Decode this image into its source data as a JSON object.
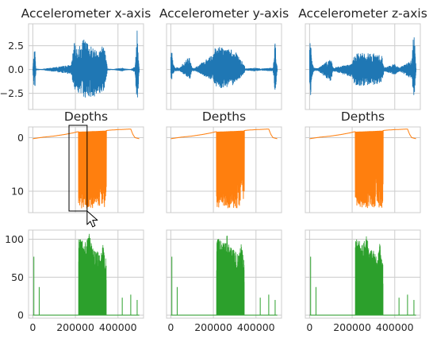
{
  "colors": {
    "blue": "#1f77b4",
    "orange": "#ff7f0e",
    "green": "#2ca02c",
    "grid": "#cccccc"
  },
  "chart_data": [
    {
      "type": "line",
      "row": 0,
      "col": 0,
      "title": "Accelerometer x-axis",
      "series_color": "#1f77b4",
      "xlim": [
        -20000,
        520000
      ],
      "ylim": [
        -4.2,
        4.8
      ],
      "yticks": [
        -2.5,
        0.0,
        2.5
      ],
      "ytick_labels": [
        "−2.5",
        "0.0",
        "2.5"
      ],
      "xticks": [
        0,
        200000,
        400000
      ],
      "show_xtick_labels": false,
      "show_ytick_labels": true,
      "grid": true,
      "envelope_x": [
        0,
        5000,
        10000,
        15000,
        40000,
        180000,
        195000,
        210000,
        240000,
        300000,
        340000,
        350000,
        380000,
        420000,
        430000,
        460000,
        480000,
        490000,
        500000
      ],
      "envelope_hi": [
        0.1,
        1.8,
        2.0,
        0.1,
        0.05,
        0.5,
        2.8,
        2.2,
        3.2,
        2.0,
        2.8,
        0.1,
        0.05,
        0.2,
        0.1,
        0.05,
        0.3,
        4.2,
        0.1
      ],
      "envelope_lo": [
        -0.1,
        -1.6,
        -2.2,
        -0.1,
        -0.05,
        -0.5,
        -2.0,
        -2.4,
        -3.0,
        -2.8,
        -2.2,
        -0.1,
        -0.05,
        -0.2,
        -0.1,
        -0.05,
        -0.3,
        -3.9,
        -0.1
      ]
    },
    {
      "type": "line",
      "row": 0,
      "col": 1,
      "title": "Accelerometer y-axis",
      "series_color": "#1f77b4",
      "xlim": [
        -20000,
        520000
      ],
      "ylim": [
        -4.2,
        4.8
      ],
      "xticks": [
        0,
        200000,
        400000
      ],
      "show_xtick_labels": false,
      "show_ytick_labels": false,
      "grid": true,
      "envelope_x": [
        0,
        5000,
        10000,
        20000,
        40000,
        90000,
        100000,
        110000,
        200000,
        210000,
        240000,
        300000,
        345000,
        350000,
        400000,
        420000,
        480000,
        490000,
        500000
      ],
      "envelope_hi": [
        1.8,
        2.0,
        0.8,
        0.3,
        0.15,
        1.5,
        0.2,
        0.15,
        1.6,
        2.5,
        2.4,
        2.0,
        0.5,
        0.1,
        0.2,
        0.1,
        0.2,
        3.0,
        0.1
      ],
      "envelope_lo": [
        -1.0,
        -1.2,
        -0.5,
        -0.2,
        -0.15,
        -1.0,
        -0.2,
        -0.15,
        -1.2,
        -1.8,
        -2.0,
        -1.6,
        -0.4,
        -0.1,
        -0.2,
        -0.1,
        -0.2,
        -2.8,
        -0.1
      ]
    },
    {
      "type": "line",
      "row": 0,
      "col": 2,
      "title": "Accelerometer z-axis",
      "series_color": "#1f77b4",
      "xlim": [
        -20000,
        520000
      ],
      "ylim": [
        -4.2,
        4.8
      ],
      "xticks": [
        0,
        200000,
        400000
      ],
      "show_xtick_labels": false,
      "show_ytick_labels": false,
      "grid": true,
      "envelope_x": [
        0,
        5000,
        10000,
        20000,
        40000,
        100000,
        110000,
        200000,
        210000,
        250000,
        300000,
        340000,
        350000,
        400000,
        420000,
        480000,
        490000,
        500000
      ],
      "envelope_hi": [
        2.8,
        3.0,
        1.0,
        0.2,
        0.15,
        1.2,
        0.2,
        0.6,
        1.6,
        1.8,
        1.7,
        1.5,
        0.2,
        0.6,
        0.2,
        1.0,
        4.5,
        0.2
      ],
      "envelope_lo": [
        -2.6,
        -2.8,
        -1.0,
        -0.2,
        -0.15,
        -1.4,
        -0.2,
        -0.8,
        -1.6,
        -1.8,
        -1.6,
        -1.4,
        -0.2,
        -0.6,
        -0.2,
        -1.0,
        -3.2,
        -0.2
      ]
    },
    {
      "type": "line",
      "row": 1,
      "col": 0,
      "title": "Depths",
      "series_color": "#ff7f0e",
      "xlim": [
        -20000,
        520000
      ],
      "ylim": [
        14,
        -2
      ],
      "yticks": [
        0,
        10
      ],
      "ytick_labels": [
        "0",
        "10"
      ],
      "xticks": [
        0,
        200000,
        400000
      ],
      "show_xtick_labels": false,
      "show_ytick_labels": true,
      "grid": true,
      "depth_profile_x": [
        0,
        50000,
        100000,
        150000,
        190000,
        210000,
        340000,
        360000,
        400000,
        460000,
        470000,
        480000,
        500000
      ],
      "depth_profile_y": [
        0.2,
        -0.1,
        -0.3,
        -0.6,
        -0.9,
        -1.1,
        -1.3,
        -1.4,
        -1.5,
        -1.6,
        -0.6,
        0.0,
        0.2
      ],
      "dive_start": 215000,
      "dive_end": 345000,
      "dive_max": 13.2
    },
    {
      "type": "line",
      "row": 1,
      "col": 1,
      "title": "Depths",
      "series_color": "#ff7f0e",
      "xlim": [
        -20000,
        520000
      ],
      "ylim": [
        14,
        -2
      ],
      "xticks": [
        0,
        200000,
        400000
      ],
      "show_xtick_labels": false,
      "show_ytick_labels": false,
      "grid": true,
      "depth_profile_x": [
        0,
        50000,
        100000,
        150000,
        190000,
        210000,
        340000,
        360000,
        400000,
        460000,
        470000,
        480000,
        500000
      ],
      "depth_profile_y": [
        0.2,
        -0.1,
        -0.3,
        -0.6,
        -0.9,
        -1.1,
        -1.3,
        -1.4,
        -1.5,
        -1.6,
        -0.6,
        0.0,
        0.2
      ],
      "dive_start": 215000,
      "dive_end": 345000,
      "dive_max": 13.2
    },
    {
      "type": "line",
      "row": 1,
      "col": 2,
      "title": "Depths",
      "series_color": "#ff7f0e",
      "xlim": [
        -20000,
        520000
      ],
      "ylim": [
        14,
        -2
      ],
      "xticks": [
        0,
        200000,
        400000
      ],
      "show_xtick_labels": false,
      "show_ytick_labels": false,
      "grid": true,
      "depth_profile_x": [
        0,
        50000,
        100000,
        150000,
        190000,
        210000,
        340000,
        360000,
        400000,
        460000,
        470000,
        480000,
        500000
      ],
      "depth_profile_y": [
        0.2,
        -0.1,
        -0.3,
        -0.6,
        -0.9,
        -1.1,
        -1.3,
        -1.4,
        -1.5,
        -1.6,
        -0.6,
        0.0,
        0.2
      ],
      "dive_start": 215000,
      "dive_end": 345000,
      "dive_max": 13.2
    },
    {
      "type": "bar",
      "row": 2,
      "col": 0,
      "title": "",
      "series_color": "#2ca02c",
      "xlim": [
        -20000,
        520000
      ],
      "ylim": [
        -4,
        112
      ],
      "yticks": [
        0,
        50,
        100
      ],
      "ytick_labels": [
        "0",
        "50",
        "100"
      ],
      "xticks": [
        0,
        200000,
        400000
      ],
      "xtick_labels": [
        "0",
        "200000",
        "400000"
      ],
      "show_xtick_labels": true,
      "show_ytick_labels": true,
      "grid": true,
      "spikes_x": [
        5000,
        30000,
        420000,
        460000,
        490000
      ],
      "spikes_y": [
        77,
        37,
        23,
        27,
        20
      ],
      "burst_start": 215000,
      "burst_end": 345000,
      "burst_env_x": [
        215000,
        230000,
        250000,
        265000,
        280000,
        300000,
        320000,
        330000,
        345000
      ],
      "burst_env_y": [
        100,
        102,
        95,
        108,
        90,
        85,
        80,
        95,
        70
      ]
    },
    {
      "type": "bar",
      "row": 2,
      "col": 1,
      "title": "",
      "series_color": "#2ca02c",
      "xlim": [
        -20000,
        520000
      ],
      "ylim": [
        -4,
        112
      ],
      "xticks": [
        0,
        200000,
        400000
      ],
      "xtick_labels": [
        "0",
        "200000",
        "400000"
      ],
      "show_xtick_labels": true,
      "show_ytick_labels": false,
      "grid": true,
      "spikes_x": [
        5000,
        30000,
        420000,
        460000,
        490000
      ],
      "spikes_y": [
        77,
        37,
        23,
        27,
        20
      ],
      "burst_start": 215000,
      "burst_end": 345000,
      "burst_env_x": [
        215000,
        230000,
        250000,
        265000,
        280000,
        300000,
        320000,
        330000,
        345000
      ],
      "burst_env_y": [
        100,
        102,
        95,
        108,
        90,
        85,
        80,
        95,
        70
      ]
    },
    {
      "type": "bar",
      "row": 2,
      "col": 2,
      "title": "",
      "series_color": "#2ca02c",
      "xlim": [
        -20000,
        520000
      ],
      "ylim": [
        -4,
        112
      ],
      "xticks": [
        0,
        200000,
        400000
      ],
      "xtick_labels": [
        "0",
        "200000",
        "400000"
      ],
      "show_xtick_labels": true,
      "show_ytick_labels": false,
      "grid": true,
      "spikes_x": [
        5000,
        30000,
        420000,
        460000,
        490000
      ],
      "spikes_y": [
        77,
        37,
        23,
        27,
        20
      ],
      "burst_start": 215000,
      "burst_end": 345000,
      "burst_env_x": [
        215000,
        230000,
        250000,
        265000,
        280000,
        300000,
        320000,
        330000,
        345000
      ],
      "burst_env_y": [
        100,
        102,
        95,
        108,
        90,
        85,
        80,
        95,
        70
      ]
    }
  ],
  "selection_box": {
    "panel_index": 3,
    "x": [
      170000,
      255000
    ],
    "y": [
      -2.3,
      13.7
    ]
  }
}
